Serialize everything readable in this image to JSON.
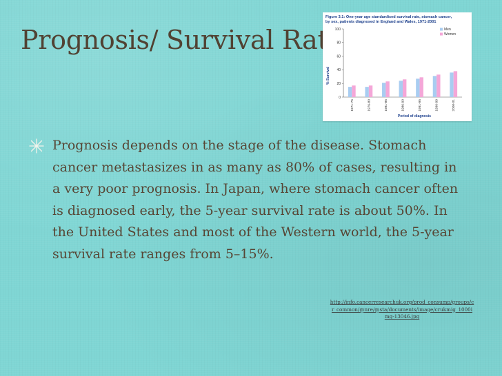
{
  "slide": {
    "title": "Prognosis/ Survival Rate",
    "bullets": [
      {
        "text": "Prognosis depends on the stage of the disease. Stomach cancer metastasizes in as many as 80% of cases, resulting in a very poor prognosis. In Japan, where stomach cancer often is diagnosed early, the 5-year survival rate is about 50%. In the United States and most of the Western world, the 5-year survival rate ranges from 5–15%."
      }
    ],
    "source_url": "http://info.cancerresearchuk.org/prod_consump/groups/cr_common/@nre/@sta/documents/image/crukmig_1000img-13046.jpg",
    "background_color": "#7fd6d4",
    "bullet_icon": "asterisk-star-icon"
  },
  "chart_data": {
    "type": "bar",
    "title": "Figure 3.1: One-year age standardised survival rate, stomach cancer, by sex, patients diagnosed in England and Wales, 1971-2001",
    "xlabel": "Period of diagnosis",
    "ylabel": "% Survival",
    "ylim": [
      0,
      100
    ],
    "yticks": [
      0,
      20,
      40,
      60,
      80,
      100
    ],
    "categories": [
      "1971-75",
      "1976-80",
      "1981-85",
      "1986-90",
      "1991-95",
      "1996-99",
      "2000-01"
    ],
    "series": [
      {
        "name": "Men",
        "color": "#a9cdf1",
        "values": [
          15,
          15,
          21,
          24,
          27,
          31,
          36
        ]
      },
      {
        "name": "Women",
        "color": "#f4a7d8",
        "values": [
          17,
          17,
          23,
          26,
          29,
          33,
          38
        ]
      }
    ],
    "legend": "top-right",
    "grid": false
  }
}
